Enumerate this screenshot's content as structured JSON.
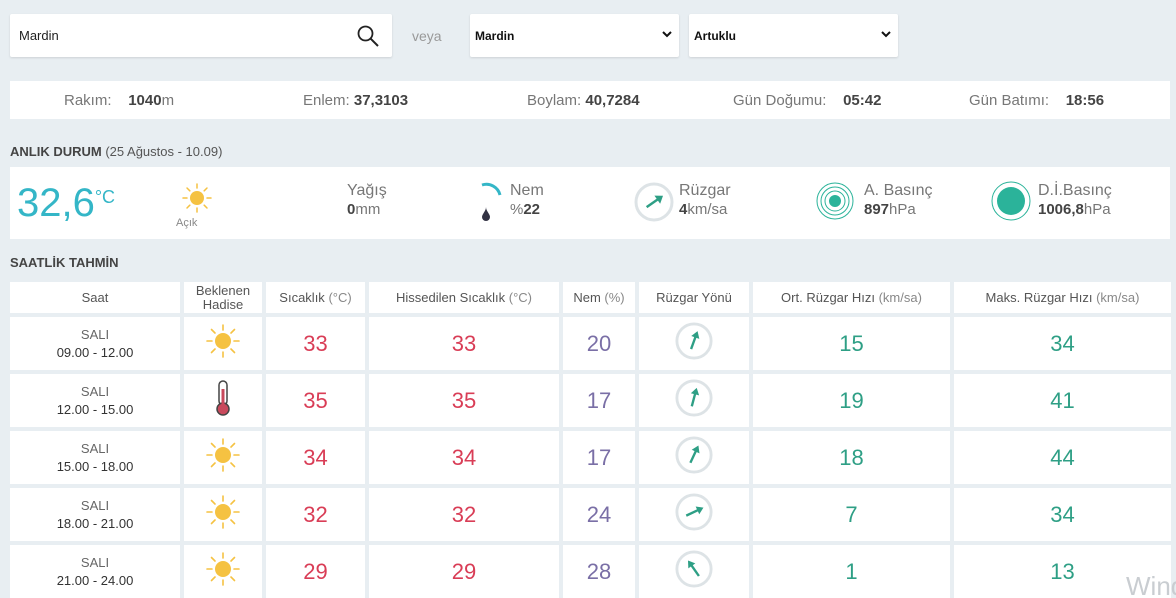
{
  "search": {
    "value": "Mardin"
  },
  "or_label": "veya",
  "selects": {
    "province": "Mardin",
    "district": "Artuklu"
  },
  "info": {
    "altitude_label": "Rakım:",
    "altitude_value": "1040",
    "altitude_unit": "m",
    "lat_label": "Enlem:",
    "lat_value": "37,3103",
    "lon_label": "Boylam:",
    "lon_value": "40,7284",
    "sunrise_label": "Gün Doğumu:",
    "sunrise_value": "05:42",
    "sunset_label": "Gün Batımı:",
    "sunset_value": "18:56"
  },
  "current": {
    "title": "ANLIK DURUM",
    "subtitle": "(25 Ağustos - 10.09)",
    "temp": "32,6",
    "temp_unit": "°C",
    "condition": "Açık",
    "rain_label": "Yağış",
    "rain_value": "0",
    "rain_unit": "mm",
    "humidity_label": "Nem",
    "humidity_prefix": "%",
    "humidity_value": "22",
    "wind_label": "Rüzgar",
    "wind_value": "4",
    "wind_unit": "km/sa",
    "pressure_label": "A. Basınç",
    "pressure_value": "897",
    "pressure_unit": "hPa",
    "sea_pressure_label": "D.İ.Basınç",
    "sea_pressure_value": "1006,8",
    "sea_pressure_unit": "hPa"
  },
  "hourly": {
    "title": "SAATLİK TAHMİN",
    "headers": {
      "saat": "Saat",
      "hadise_1": "Beklenen",
      "hadise_2": "Hadise",
      "sicaklik": "Sıcaklık",
      "sicaklik_unit": "(°C)",
      "hissedilen": "Hissedilen Sıcaklık",
      "hissedilen_unit": "(°C)",
      "nem": "Nem",
      "nem_unit": "(%)",
      "yon": "Rüzgar Yönü",
      "ort": "Ort. Rüzgar Hızı",
      "ort_unit": "(km/sa)",
      "maks": "Maks. Rüzgar Hızı",
      "maks_unit": "(km/sa)"
    },
    "rows": [
      {
        "day": "SALI",
        "time": "09.00 - 12.00",
        "icon": "sun-icon",
        "temp": "33",
        "feels": "33",
        "humidity": "20",
        "wind_dir_deg": 20,
        "avg": "15",
        "max": "34"
      },
      {
        "day": "SALI",
        "time": "12.00 - 15.00",
        "icon": "thermometer-icon",
        "temp": "35",
        "feels": "35",
        "humidity": "17",
        "wind_dir_deg": 15,
        "avg": "19",
        "max": "41"
      },
      {
        "day": "SALI",
        "time": "15.00 - 18.00",
        "icon": "sun-icon",
        "temp": "34",
        "feels": "34",
        "humidity": "17",
        "wind_dir_deg": 25,
        "avg": "18",
        "max": "44"
      },
      {
        "day": "SALI",
        "time": "18.00 - 21.00",
        "icon": "sun-icon",
        "temp": "32",
        "feels": "32",
        "humidity": "24",
        "wind_dir_deg": 65,
        "avg": "7",
        "max": "34"
      },
      {
        "day": "SALI",
        "time": "21.00 - 24.00",
        "icon": "sun-icon",
        "temp": "29",
        "feels": "29",
        "humidity": "28",
        "wind_dir_deg": -35,
        "avg": "1",
        "max": "13"
      }
    ]
  },
  "watermark": "Wind",
  "colors": {
    "accent": "#34b6c7",
    "temp": "#d93d56",
    "humidity": "#7a6fa6",
    "wind": "#2e9f85",
    "sun": "#f5c242",
    "pressure": "#2bb39a"
  }
}
